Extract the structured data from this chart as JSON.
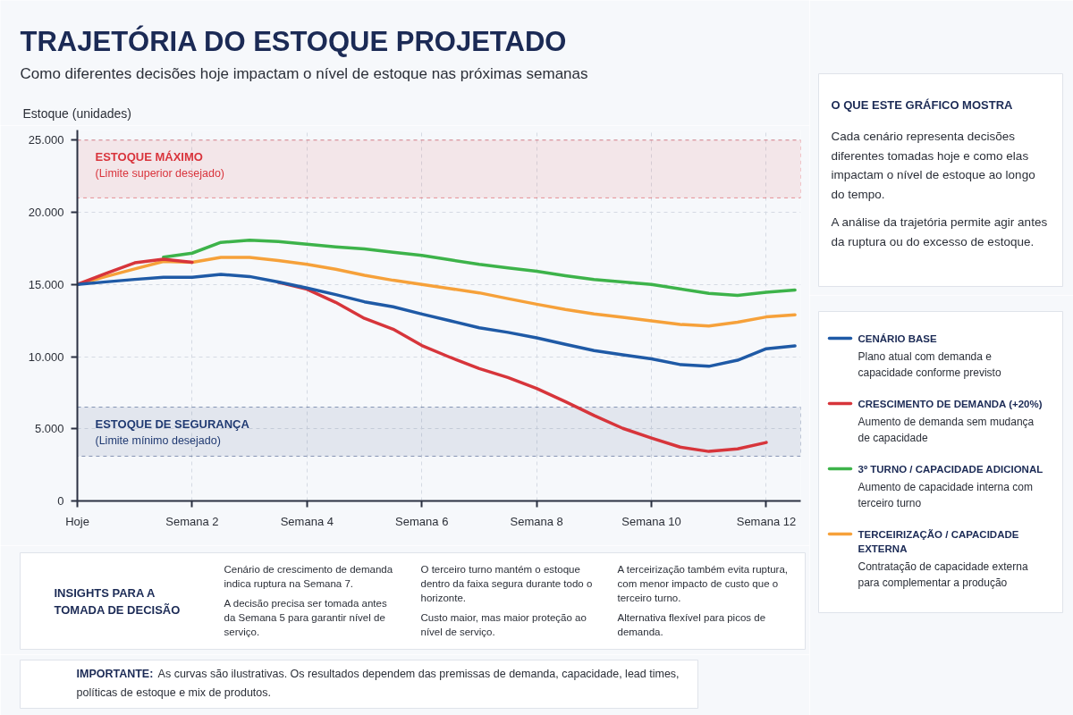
{
  "chart_data": {
    "type": "line",
    "title": "TRAJETÓRIA DO ESTOQUE PROJETADO",
    "subtitle": "Como diferentes decisões hoje impactam o nível de estoque nas próximas semanas",
    "ylabel": "Estoque (unidades)",
    "categories": [
      "Hoje",
      null,
      null,
      null,
      "Semana 2",
      null,
      null,
      null,
      "Semana 4",
      null,
      null,
      null,
      "Semana 6",
      null,
      null,
      null,
      "Semana 8",
      null,
      null,
      null,
      "Semana 10",
      null,
      null,
      null,
      "Semana 12",
      null
    ],
    "ylim": [
      0,
      25700
    ],
    "yticks": [
      0,
      {
        "value": 5000,
        "label": "5.000"
      },
      {
        "value": 10000,
        "label": "10.000"
      },
      {
        "value": 15000,
        "label": "15.000"
      },
      {
        "value": 20000,
        "label": "20.000"
      },
      {
        "value": 25000,
        "label": "25.000"
      }
    ],
    "grid": true,
    "legend": "right",
    "line_style": "solid",
    "series": [
      {
        "name": "CENÁRIO BASE",
        "color": "#1f5aa6",
        "values": [
          15000,
          15180,
          15350,
          15500,
          15500,
          15700,
          15550,
          15170,
          14750,
          14300,
          13800,
          13450,
          12950,
          12480,
          12000,
          11680,
          11300,
          10850,
          10420,
          10130,
          9850,
          9450,
          9330,
          9750,
          10550,
          10750
        ]
      },
      {
        "name": "CRESCIMENTO DE DEMANDA (+20%)",
        "color": "#d7353b",
        "values": [
          15000,
          15770,
          16500,
          16750,
          16540,
          null,
          null,
          15150,
          14670,
          13760,
          12650,
          11900,
          10770,
          9940,
          9170,
          8550,
          7800,
          6880,
          5920,
          5030,
          4360,
          3730,
          3430,
          3610,
          4050,
          null
        ]
      },
      {
        "name": "3º TURNO / CAPACIDADE ADICIONAL",
        "color": "#3db34a",
        "values": [
          null,
          null,
          null,
          16890,
          17170,
          17920,
          18060,
          17970,
          17790,
          17610,
          17470,
          17230,
          17020,
          16700,
          16390,
          16150,
          15920,
          15610,
          15340,
          15170,
          15000,
          14690,
          14380,
          14250,
          14460,
          14620
        ]
      },
      {
        "name": "TERCEIRIZAÇÃO / CAPACIDADE EXTERNA",
        "color": "#f6a13a",
        "values": [
          15000,
          15550,
          16080,
          16600,
          16540,
          16880,
          16880,
          16660,
          16390,
          16050,
          15640,
          15290,
          15000,
          14710,
          14420,
          14020,
          13630,
          13270,
          12960,
          12720,
          12480,
          12230,
          12120,
          12380,
          12750,
          12900
        ]
      }
    ],
    "bands": [
      {
        "axis": "y",
        "from": 21000,
        "to": 25000,
        "label": "ESTOQUE MÁXIMO",
        "color": "#d9343c"
      },
      {
        "axis": "y",
        "from": 3100,
        "to": 6500,
        "label": "ESTOQUE DE SEGURANÇA",
        "color": "#203a72"
      }
    ],
    "annotations": [
      "(Limite superior desejado)",
      "(Limite mínimo desejado)",
      "O QUE ESTE GRÁFICO MOSTRA",
      "Cada cenário representa decisões diferentes tomadas hoje e como elas impactam o nível de estoque ao longo do tempo.",
      "A análise da trajetória permite agir antes da ruptura ou do excesso de estoque.",
      "Plano atual com demanda e capacidade conforme previsto",
      "Aumento de demanda sem mudança de capacidade",
      "Aumento de capacidade interna com terceiro turno",
      "Contratação de capacidade externa para complementar a produção",
      "INSIGHTS PARA A TOMADA DE DECISÃO",
      "Cenário de crescimento de demanda indica ruptura na Semana 7.",
      "A decisão precisa ser tomada antes da Semana 5 para garantir nível de serviço.",
      "O terceiro turno mantém o estoque dentro da faixa segura durante todo o horizonte.",
      "Custo maior, mas maior proteção ao nível de serviço.",
      "A terceirização também evita ruptura, com menor impacto de custo que o terceiro turno.",
      "Alternativa flexível para picos de demanda.",
      "IMPORTANTE:",
      "As curvas são ilustrativas. Os resultados dependem das premissas de demanda, capacidade, lead times, políticas de estoque e mix de produtos."
    ]
  }
}
